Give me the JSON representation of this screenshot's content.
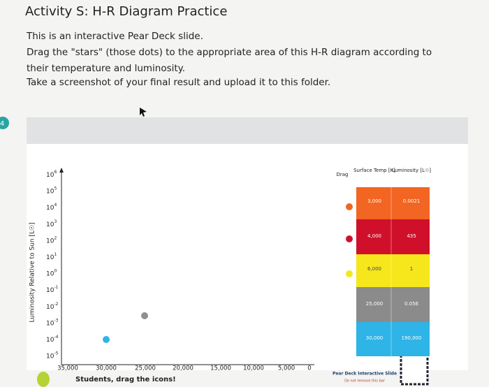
{
  "slide_number": "4",
  "title": "Activity S: H-R Diagram Practice",
  "instructions": [
    "This is an interactive Pear Deck slide.",
    "Drag the \"stars\" (those dots) to the appropriate area of this H-R diagram according to",
    "their temperature and luminosity.",
    "Take a screenshot of your final result and upload it to this folder."
  ],
  "diagram": {
    "y_axis_label": "Luminosity Relative to Sun [L☉]",
    "y_ticks": [
      {
        "base": "10",
        "exponent": "6"
      },
      {
        "base": "10",
        "exponent": "5"
      },
      {
        "base": "10",
        "exponent": "4"
      },
      {
        "base": "10",
        "exponent": "3"
      },
      {
        "base": "10",
        "exponent": "2"
      },
      {
        "base": "10",
        "exponent": "1"
      },
      {
        "base": "10",
        "exponent": "0"
      },
      {
        "base": "10",
        "exponent": "-1"
      },
      {
        "base": "10",
        "exponent": "-2"
      },
      {
        "base": "10",
        "exponent": "-3"
      },
      {
        "base": "10",
        "exponent": "-4"
      },
      {
        "base": "10",
        "exponent": "-5"
      }
    ],
    "x_ticks": [
      "35,000",
      "30,000",
      "25,000",
      "20,000",
      "15,000",
      "10,000",
      "5,000",
      "0"
    ]
  },
  "table": {
    "headers": [
      "Drag",
      "Surface Temp [K]",
      "Luminosity [L☉]"
    ],
    "rows": [
      [
        "3,000",
        "0.0021"
      ],
      [
        "4,000",
        "435"
      ],
      [
        "6,000",
        "1"
      ],
      [
        "25,000",
        "0.056"
      ],
      [
        "30,000",
        "190,000"
      ]
    ]
  },
  "footer": {
    "prompt": "Students, drag the icons!",
    "brand": "Pear Deck Interactive Slide",
    "note": "Do not remove this bar"
  }
}
